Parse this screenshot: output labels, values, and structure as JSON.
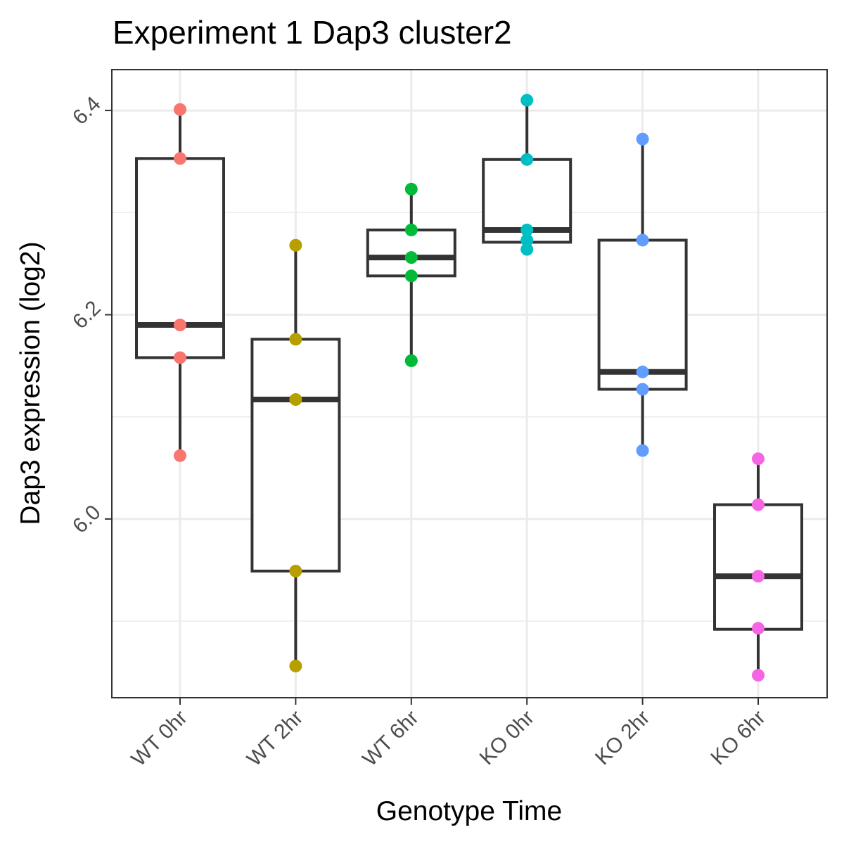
{
  "chart_data": {
    "type": "boxplot",
    "title": "Experiment 1 Dap3 cluster2",
    "xlabel": "Genotype Time",
    "ylabel": "Dap3 expression (log2)",
    "ylim": [
      5.825,
      6.44
    ],
    "yticks": [
      6.0,
      6.2,
      6.4
    ],
    "ytick_labels": [
      "6.0",
      "6.2",
      "6.4"
    ],
    "grid": true,
    "categories": [
      "WT 0hr",
      "WT 2hr",
      "WT 6hr",
      "KO 0hr",
      "KO 2hr",
      "KO 6hr"
    ],
    "boxes": [
      {
        "name": "WT 0hr",
        "color": "#F8766D",
        "min": 6.062,
        "q1": 6.158,
        "median": 6.19,
        "q3": 6.353,
        "max": 6.401,
        "points": [
          6.401,
          6.353,
          6.19,
          6.158,
          6.062
        ]
      },
      {
        "name": "WT 2hr",
        "color": "#B79F00",
        "min": 5.856,
        "q1": 5.949,
        "median": 6.117,
        "q3": 6.176,
        "max": 6.268,
        "points": [
          6.268,
          6.176,
          6.117,
          5.949,
          5.856
        ]
      },
      {
        "name": "WT 6hr",
        "color": "#00BA38",
        "min": 6.155,
        "q1": 6.238,
        "median": 6.256,
        "q3": 6.283,
        "max": 6.323,
        "points": [
          6.323,
          6.283,
          6.256,
          6.238,
          6.155,
          6.155
        ]
      },
      {
        "name": "KO 0hr",
        "color": "#00BFC4",
        "min": 6.264,
        "q1": 6.271,
        "median": 6.283,
        "q3": 6.352,
        "max": 6.41,
        "points": [
          6.41,
          6.352,
          6.283,
          6.273,
          6.264
        ]
      },
      {
        "name": "KO 2hr",
        "color": "#619CFF",
        "min": 6.067,
        "q1": 6.127,
        "median": 6.144,
        "q3": 6.273,
        "max": 6.372,
        "points": [
          6.372,
          6.273,
          6.144,
          6.127,
          6.067
        ]
      },
      {
        "name": "KO 6hr",
        "color": "#F564E3",
        "min": 5.847,
        "q1": 5.892,
        "median": 5.944,
        "q3": 6.014,
        "max": 6.059,
        "points": [
          6.059,
          6.014,
          5.944,
          5.893,
          5.847
        ]
      }
    ]
  }
}
